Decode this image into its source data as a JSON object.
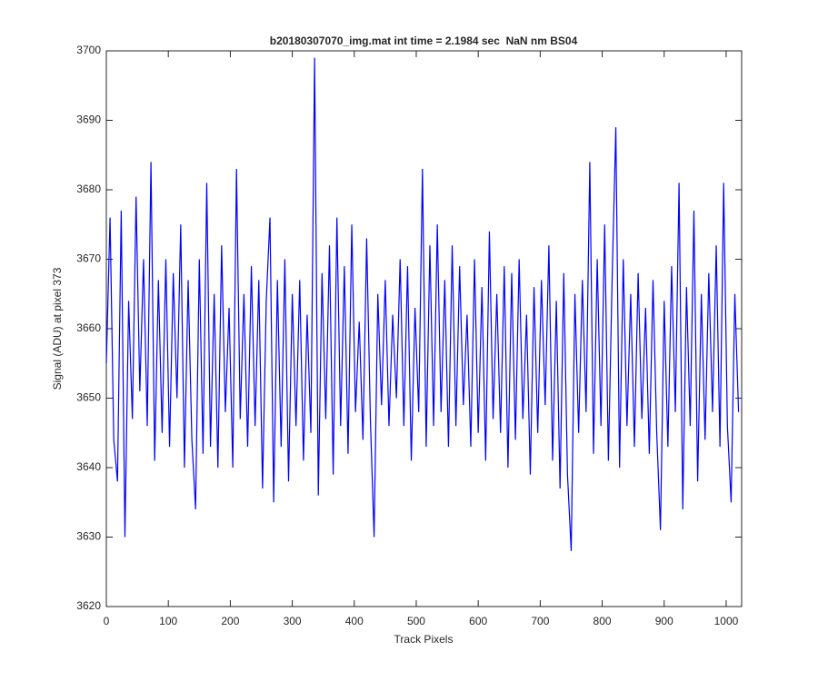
{
  "chart_data": {
    "type": "line",
    "title": "b20180307070_img.mat int time = 2.1984 sec  NaN nm BS04",
    "xlabel": "Track Pixels",
    "ylabel": "Signal (ADU) at pixel 373",
    "color": "#0000ff",
    "xlim": [
      0,
      1025
    ],
    "ylim": [
      3620,
      3700
    ],
    "xticks": [
      0,
      100,
      200,
      300,
      400,
      500,
      600,
      700,
      800,
      900,
      1000
    ],
    "yticks": [
      3620,
      3630,
      3640,
      3650,
      3660,
      3670,
      3680,
      3690,
      3700
    ],
    "x": [
      0,
      6,
      12,
      18,
      24,
      30,
      36,
      42,
      48,
      54,
      60,
      66,
      72,
      78,
      84,
      90,
      96,
      102,
      108,
      114,
      120,
      126,
      132,
      138,
      144,
      150,
      156,
      162,
      168,
      174,
      180,
      186,
      192,
      198,
      204,
      210,
      216,
      222,
      228,
      234,
      240,
      246,
      252,
      258,
      264,
      270,
      276,
      282,
      288,
      294,
      300,
      306,
      312,
      318,
      324,
      330,
      336,
      342,
      348,
      354,
      360,
      366,
      372,
      378,
      384,
      390,
      396,
      402,
      408,
      414,
      420,
      426,
      432,
      438,
      444,
      450,
      456,
      462,
      468,
      474,
      480,
      486,
      492,
      498,
      504,
      510,
      516,
      522,
      528,
      534,
      540,
      546,
      552,
      558,
      564,
      570,
      576,
      582,
      588,
      594,
      600,
      606,
      612,
      618,
      624,
      630,
      636,
      642,
      648,
      654,
      660,
      666,
      672,
      678,
      684,
      690,
      696,
      702,
      708,
      714,
      720,
      726,
      732,
      738,
      744,
      750,
      756,
      762,
      768,
      774,
      780,
      786,
      792,
      798,
      804,
      810,
      816,
      822,
      828,
      834,
      840,
      846,
      852,
      858,
      864,
      870,
      876,
      882,
      888,
      894,
      900,
      906,
      912,
      918,
      924,
      930,
      936,
      942,
      948,
      954,
      960,
      966,
      972,
      978,
      984,
      990,
      996,
      1002,
      1008,
      1014,
      1020
    ],
    "values": [
      3655,
      3676,
      3644,
      3638,
      3677,
      3630,
      3664,
      3647,
      3679,
      3651,
      3670,
      3646,
      3684,
      3641,
      3667,
      3645,
      3670,
      3643,
      3668,
      3650,
      3675,
      3640,
      3667,
      3644,
      3634,
      3670,
      3642,
      3681,
      3643,
      3665,
      3640,
      3672,
      3648,
      3663,
      3640,
      3683,
      3647,
      3665,
      3643,
      3669,
      3646,
      3667,
      3637,
      3664,
      3676,
      3635,
      3667,
      3643,
      3670,
      3638,
      3665,
      3646,
      3667,
      3641,
      3662,
      3645,
      3699,
      3636,
      3668,
      3647,
      3672,
      3639,
      3676,
      3646,
      3669,
      3642,
      3675,
      3648,
      3661,
      3644,
      3673,
      3647,
      3630,
      3665,
      3649,
      3667,
      3646,
      3662,
      3650,
      3670,
      3646,
      3669,
      3641,
      3663,
      3648,
      3683,
      3643,
      3672,
      3646,
      3675,
      3648,
      3667,
      3643,
      3672,
      3646,
      3669,
      3649,
      3662,
      3643,
      3670,
      3645,
      3666,
      3641,
      3674,
      3647,
      3665,
      3645,
      3669,
      3640,
      3668,
      3644,
      3670,
      3647,
      3662,
      3639,
      3666,
      3645,
      3667,
      3649,
      3672,
      3641,
      3664,
      3637,
      3668,
      3639,
      3628,
      3665,
      3645,
      3667,
      3648,
      3684,
      3642,
      3670,
      3646,
      3675,
      3641,
      3667,
      3689,
      3640,
      3670,
      3646,
      3665,
      3643,
      3668,
      3647,
      3663,
      3642,
      3667,
      3645,
      3631,
      3664,
      3643,
      3669,
      3648,
      3681,
      3634,
      3666,
      3646,
      3677,
      3638,
      3665,
      3644,
      3668,
      3648,
      3672,
      3643,
      3681,
      3646,
      3635,
      3665,
      3648
    ]
  }
}
